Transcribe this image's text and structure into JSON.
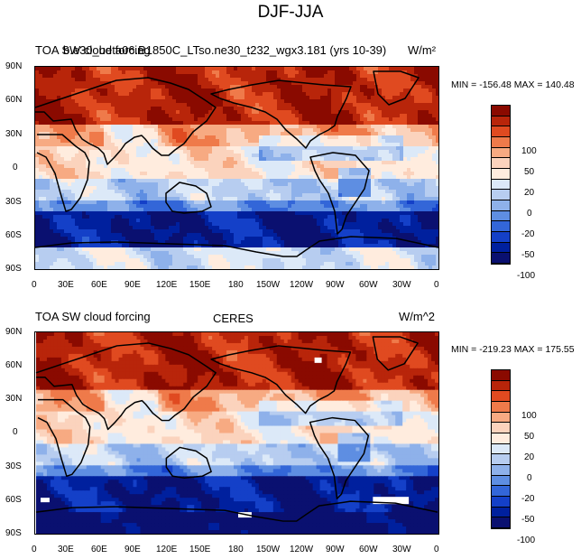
{
  "figure": {
    "title": "DJF-JJA"
  },
  "panels": [
    {
      "left_title": "TOA SW cloud forcing",
      "center_title": "b.e30_beta06.B1850C_LTso.ne30_t232_wgx3.181 (yrs 10-39)",
      "units": "W/m²",
      "stats": "MIN = -156.48 MAX = 140.48",
      "lat_ticks": [
        "90N",
        "60N",
        "30N",
        "0",
        "30S",
        "60S",
        "90S"
      ],
      "lon_ticks": [
        "0",
        "30E",
        "60E",
        "90E",
        "120E",
        "150E",
        "180",
        "150W",
        "120W",
        "90W",
        "60W",
        "30W",
        "0"
      ]
    },
    {
      "left_title": "TOA SW cloud forcing",
      "center_title": "CERES",
      "units": "W/m^2",
      "stats": "MIN = -219.23 MAX = 175.55",
      "lat_ticks": [
        "90N",
        "60N",
        "30N",
        "0",
        "30S",
        "60S",
        "90S"
      ],
      "lon_ticks": [
        "0",
        "30E",
        "60E",
        "90E",
        "120E",
        "150E",
        "180",
        "150W",
        "120W",
        "90W",
        "60W",
        "30W",
        "0"
      ]
    }
  ],
  "colorbar": {
    "labels": [
      "100",
      "50",
      "20",
      "0",
      "-20",
      "-50",
      "-100"
    ],
    "colors": [
      "#8a0a00",
      "#b8250a",
      "#e04a20",
      "#ef7a4a",
      "#f7aa82",
      "#fbd3bd",
      "#ffecde",
      "#dce9f8",
      "#b7cdf0",
      "#8eb1ea",
      "#5e8ee2",
      "#3366d8",
      "#1440c8",
      "#00209e",
      "#0a1070"
    ]
  }
}
